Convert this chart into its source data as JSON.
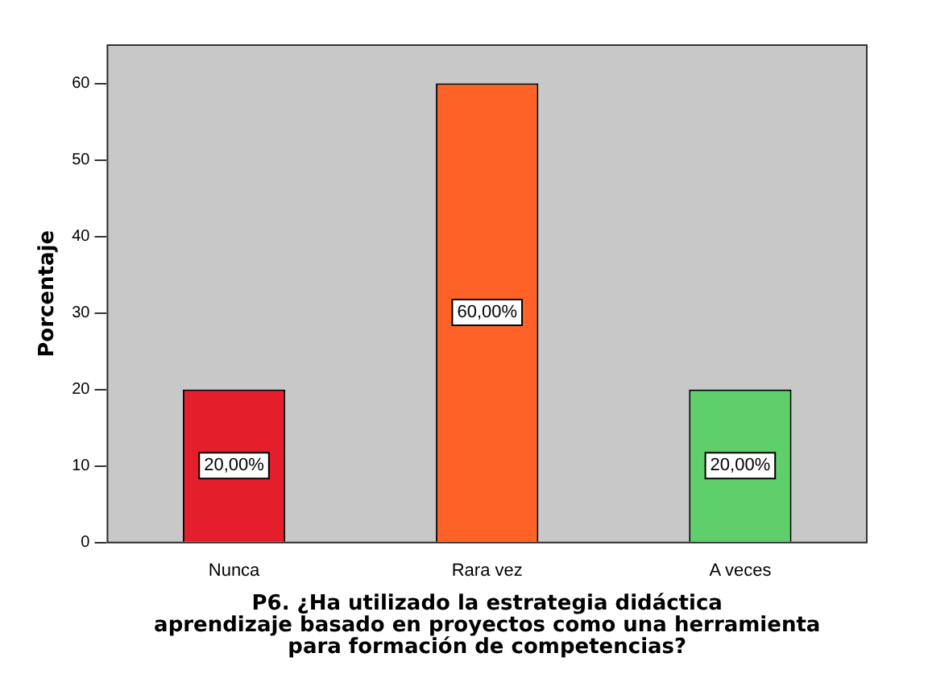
{
  "chart_data": {
    "type": "bar",
    "categories": [
      "Nunca",
      "Rara vez",
      "A veces"
    ],
    "values": [
      20,
      60,
      20
    ],
    "value_labels": [
      "20,00%",
      "60,00%",
      "20,00%"
    ],
    "colors": [
      "#e41f2b",
      "#ff6226",
      "#5fcf6b"
    ],
    "ylabel": "Porcentaje",
    "xlabel": "P6. ¿Ha utilizado la estrategia didáctica aprendizaje basado en proyectos como una herramienta para formación de competencias?",
    "ylim": [
      0,
      65
    ],
    "yticks": [
      0,
      10,
      20,
      30,
      40,
      50,
      60
    ],
    "grid": false,
    "legend": false
  }
}
